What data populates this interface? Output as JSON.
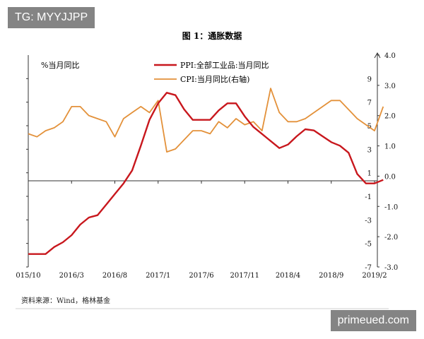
{
  "watermark_top": "TG: MYYJJPP",
  "watermark_bottom": "primeued.com",
  "source_note": "资料来源：Wind，格林基金",
  "chart_data": {
    "type": "line",
    "title": "图 1：通胀数据",
    "ylabel_left": "%当月同比",
    "x_tick_labels": [
      "015/10",
      "2016/3",
      "2016/8",
      "2017/1",
      "2017/6",
      "2017/11",
      "2018/4",
      "2018/9",
      "2019/2"
    ],
    "x_tick_months": [
      "2015-10",
      "2016-03",
      "2016-08",
      "2017-01",
      "2017-06",
      "2017-11",
      "2018-04",
      "2018-09",
      "2019-02"
    ],
    "y_left": {
      "range": [
        -7,
        11
      ],
      "tick_values": [
        -7,
        -5,
        -3,
        -1,
        1,
        3,
        5,
        7,
        9
      ],
      "tick_labels": [
        "-7",
        "-5",
        "-3",
        "-1",
        "1",
        "3",
        "5",
        "7",
        "9"
      ]
    },
    "y_right": {
      "range": [
        -3.0,
        4.0
      ],
      "tick_values": [
        -3.0,
        -2.0,
        -1.0,
        0.0,
        1.0,
        2.0,
        3.0,
        4.0
      ],
      "tick_labels": [
        "-3.0",
        "-2.0",
        "-1.0",
        "0.0",
        "1.0",
        "2.0",
        "3.0",
        "4.0"
      ]
    },
    "legend_position": "top-center",
    "grid": false,
    "months": [
      "2015-10",
      "2015-11",
      "2015-12",
      "2016-01",
      "2016-02",
      "2016-03",
      "2016-04",
      "2016-05",
      "2016-06",
      "2016-07",
      "2016-08",
      "2016-09",
      "2016-10",
      "2016-11",
      "2016-12",
      "2017-01",
      "2017-02",
      "2017-03",
      "2017-04",
      "2017-05",
      "2017-06",
      "2017-07",
      "2017-08",
      "2017-09",
      "2017-10",
      "2017-11",
      "2017-12",
      "2018-01",
      "2018-02",
      "2018-03",
      "2018-04",
      "2018-05",
      "2018-06",
      "2018-07",
      "2018-08",
      "2018-09",
      "2018-10",
      "2018-11",
      "2018-12",
      "2019-01",
      "2019-02"
    ],
    "series": [
      {
        "name": "PPI:全部工业品:当月同比",
        "axis": "left",
        "color": "#c8171d",
        "values": [
          -5.9,
          -5.9,
          -5.9,
          -5.3,
          -4.9,
          -4.3,
          -3.4,
          -2.8,
          -2.6,
          -1.7,
          -0.8,
          0.1,
          1.2,
          3.3,
          5.5,
          6.9,
          7.8,
          7.6,
          6.4,
          5.5,
          5.5,
          5.5,
          6.3,
          6.9,
          6.9,
          5.8,
          4.9,
          4.3,
          3.7,
          3.1,
          3.4,
          4.1,
          4.7,
          4.6,
          4.1,
          3.6,
          3.3,
          2.7,
          0.9,
          0.1,
          0.1
        ]
      },
      {
        "name": "CPI:当月同比(右轴)",
        "axis": "right",
        "color": "#e3913a",
        "values": [
          1.4,
          1.3,
          1.5,
          1.6,
          1.8,
          2.3,
          2.3,
          2.0,
          1.9,
          1.8,
          1.3,
          1.9,
          2.1,
          2.3,
          2.1,
          2.5,
          0.8,
          0.9,
          1.2,
          1.5,
          1.5,
          1.4,
          1.8,
          1.6,
          1.9,
          1.7,
          1.8,
          1.5,
          2.9,
          2.1,
          1.8,
          1.8,
          1.9,
          2.1,
          2.3,
          2.5,
          2.5,
          2.2,
          1.9,
          1.7,
          1.5
        ]
      }
    ],
    "extra_points": [
      {
        "series": "CPI:当月同比(右轴)",
        "month": "2019-03",
        "value": 2.3
      },
      {
        "series": "PPI:全部工业品:当月同比",
        "month": "2019-03",
        "value": 0.4
      }
    ]
  }
}
